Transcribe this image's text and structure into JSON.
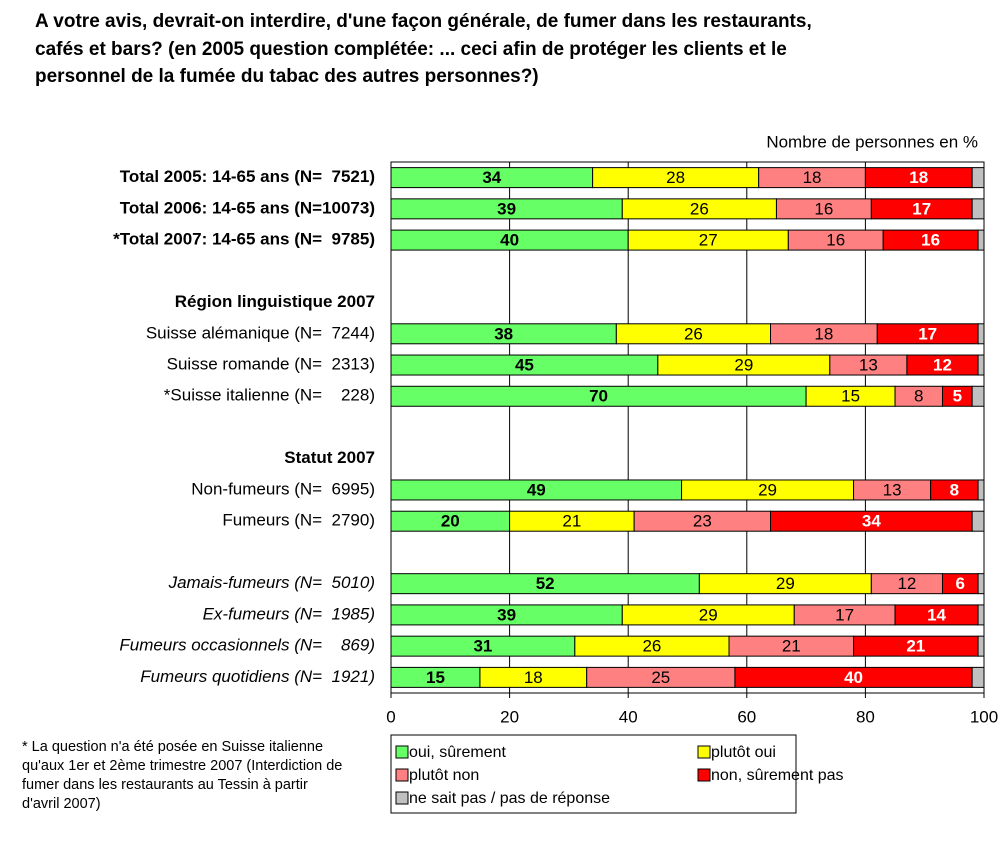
{
  "chart_data": {
    "type": "stacked_bar_horizontal",
    "title": "A votre avis, devrait-on interdire, d'une façon générale, de fumer dans les restaurants, cafés et bars? (en 2005 question complétée: ... ceci afin de protéger les clients et le personnel de la fumée du tabac des autres personnes?)",
    "unit_label": "Nombre de personnes en %",
    "footnote": "* La question n'a été posée en Suisse italienne qu'aux 1er et 2ème trimestre 2007 (Interdiction de fumer dans les restaurants au Tessin à partir d'avril 2007)",
    "categories": [
      "Total 2005: 14-65 ans (N=  7521)",
      "Total 2006: 14-65 ans (N=10073)",
      "*Total 2007: 14-65 ans (N=  9785)",
      null,
      "Région linguistique 2007",
      "Suisse alémanique (N=  7244)",
      "Suisse romande (N=  2313)",
      "*Suisse italienne (N=    228)",
      null,
      "Statut 2007",
      "Non-fumeurs (N=  6995)",
      "Fumeurs (N=  2790)",
      null,
      "Jamais-fumeurs (N=  5010)",
      "Ex-fumeurs (N=  1985)",
      "Fumeurs occasionnels (N=    869)",
      "Fumeurs quotidiens (N=  1921)"
    ],
    "series": [
      {
        "name": "oui, sûrement",
        "color": "#66ff66",
        "values": [
          34,
          39,
          40,
          null,
          null,
          38,
          45,
          70,
          null,
          null,
          49,
          20,
          null,
          52,
          39,
          31,
          15
        ]
      },
      {
        "name": "plutôt oui",
        "color": "#ffff00",
        "values": [
          28,
          26,
          27,
          null,
          null,
          26,
          29,
          15,
          null,
          null,
          29,
          21,
          null,
          29,
          29,
          26,
          18
        ]
      },
      {
        "name": "plutôt non",
        "color": "#ff8080",
        "values": [
          18,
          16,
          16,
          null,
          null,
          18,
          13,
          8,
          null,
          null,
          13,
          23,
          null,
          12,
          17,
          21,
          25
        ]
      },
      {
        "name": "non, sûrement pas",
        "color": "#ff0000",
        "values": [
          18,
          17,
          16,
          null,
          null,
          17,
          12,
          5,
          null,
          null,
          8,
          34,
          null,
          6,
          14,
          21,
          40
        ]
      },
      {
        "name": "ne sait pas / pas de réponse",
        "color": "#c0c0c0",
        "values": [
          2,
          2,
          1,
          null,
          null,
          1,
          1,
          2,
          null,
          null,
          1,
          2,
          null,
          1,
          1,
          1,
          2
        ]
      }
    ],
    "xlim": [
      0,
      100
    ],
    "xticks": [
      0,
      20,
      40,
      60,
      80,
      100
    ],
    "grid": true
  }
}
